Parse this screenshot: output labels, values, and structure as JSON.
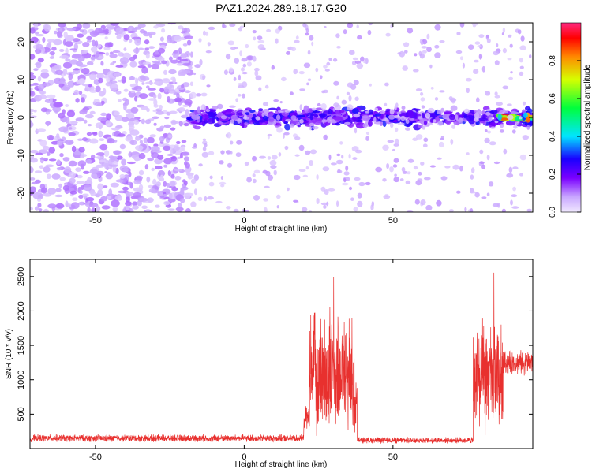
{
  "title": "PAZ1.2024.289.18.17.G20",
  "colors": {
    "snr_line": "#e8302e",
    "axis": "#000000"
  },
  "chart_data": [
    {
      "type": "heatmap",
      "title": "PAZ1.2024.289.18.17.G20",
      "xlabel": "Height of straight line (km)",
      "ylabel": "Frequency (Hz)",
      "xlim": [
        -72,
        97
      ],
      "ylim": [
        -25,
        25
      ],
      "xticks": [
        -50,
        0,
        50
      ],
      "yticks": [
        -20,
        -10,
        0,
        10,
        20
      ],
      "colorbar": {
        "label": "Normalized spectral amplitude",
        "range": [
          0,
          1
        ],
        "ticks": [
          0.0,
          0.2,
          0.4,
          0.6,
          0.8
        ],
        "colormap": "rainbow"
      },
      "features": [
        {
          "x_range": [
            -72,
            -18
          ],
          "y_range": [
            -25,
            25
          ],
          "amplitude": 0.1,
          "pattern": "scattered noise"
        },
        {
          "x_range": [
            -18,
            97
          ],
          "y_range": [
            -3,
            3
          ],
          "amplitude": 0.25,
          "pattern": "band centered at 0 Hz"
        },
        {
          "x_range": [
            85,
            97
          ],
          "y_range": [
            -1,
            1
          ],
          "amplitude": 0.95,
          "pattern": "strong peak at 0 Hz"
        }
      ]
    },
    {
      "type": "line",
      "xlabel": "Height of straight line (km)",
      "ylabel": "SNR (10 * v/v)",
      "xlim": [
        -72,
        97
      ],
      "ylim": [
        0,
        2750
      ],
      "xticks": [
        -50,
        0,
        50
      ],
      "yticks": [
        500,
        1000,
        1500,
        2000,
        2500
      ],
      "segments": [
        {
          "x_start": -72,
          "x_end": 20,
          "base": 150,
          "noise": 60
        },
        {
          "x_start": 20,
          "x_end": 22,
          "base": 450,
          "noise": 200
        },
        {
          "x_start": 22,
          "x_end": 37,
          "base": 1100,
          "noise": 1000,
          "peak": 2650
        },
        {
          "x_start": 37,
          "x_end": 38,
          "base": 600,
          "noise": 500
        },
        {
          "x_start": 38,
          "x_end": 77,
          "base": 120,
          "noise": 50
        },
        {
          "x_start": 77,
          "x_end": 87,
          "base": 1000,
          "noise": 900,
          "peak": 2750
        },
        {
          "x_start": 87,
          "x_end": 97,
          "base": 1250,
          "noise": 200
        }
      ]
    }
  ]
}
